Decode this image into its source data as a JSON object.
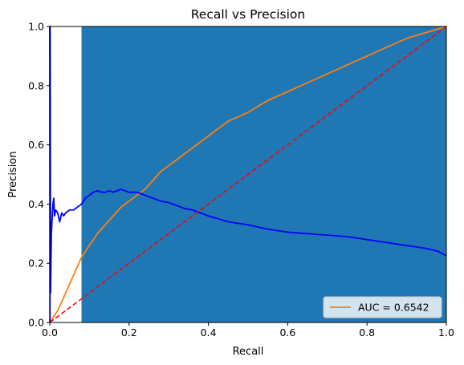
{
  "chart_data": {
    "type": "line",
    "title": "Recall vs Precision",
    "xlabel": "Recall",
    "ylabel": "Precision",
    "xlim": [
      0,
      1
    ],
    "ylim": [
      0,
      1
    ],
    "xticks": [
      "0.0",
      "0.2",
      "0.4",
      "0.6",
      "0.8",
      "1.0"
    ],
    "yticks": [
      "0.0",
      "0.2",
      "0.4",
      "0.6",
      "0.8",
      "1.0"
    ],
    "grid": false,
    "legend_position": "lower-right",
    "shaded_region": {
      "x": [
        0.08,
        1.0
      ],
      "y": [
        0,
        1
      ],
      "color": "#1f77b4"
    },
    "series": [
      {
        "name": "AUC = 0.6542",
        "color": "#ff7f0e",
        "x": [
          0,
          0.02,
          0.04,
          0.06,
          0.08,
          0.1,
          0.12,
          0.14,
          0.16,
          0.18,
          0.2,
          0.22,
          0.24,
          0.26,
          0.28,
          0.3,
          0.35,
          0.4,
          0.45,
          0.5,
          0.55,
          0.6,
          0.65,
          0.7,
          0.75,
          0.8,
          0.85,
          0.9,
          0.95,
          1.0
        ],
        "y": [
          0,
          0.04,
          0.1,
          0.16,
          0.22,
          0.26,
          0.3,
          0.33,
          0.36,
          0.39,
          0.41,
          0.43,
          0.45,
          0.48,
          0.51,
          0.53,
          0.58,
          0.63,
          0.68,
          0.71,
          0.75,
          0.78,
          0.81,
          0.84,
          0.87,
          0.9,
          0.93,
          0.96,
          0.98,
          1.0
        ]
      },
      {
        "name": "",
        "color": "#0000ff",
        "x": [
          0,
          0.0005,
          0.001,
          0.002,
          0.003,
          0.004,
          0.006,
          0.008,
          0.01,
          0.012,
          0.015,
          0.02,
          0.025,
          0.03,
          0.035,
          0.04,
          0.05,
          0.06,
          0.07,
          0.08,
          0.09,
          0.1,
          0.11,
          0.12,
          0.13,
          0.14,
          0.15,
          0.16,
          0.17,
          0.18,
          0.19,
          0.2,
          0.22,
          0.24,
          0.26,
          0.28,
          0.3,
          0.32,
          0.34,
          0.36,
          0.38,
          0.4,
          0.45,
          0.5,
          0.55,
          0.6,
          0.65,
          0.7,
          0.75,
          0.8,
          0.85,
          0.9,
          0.95,
          0.98,
          1.0
        ],
        "y": [
          1.0,
          0.0,
          1.0,
          0.1,
          0.2,
          0.3,
          0.35,
          0.4,
          0.42,
          0.36,
          0.38,
          0.37,
          0.34,
          0.37,
          0.36,
          0.37,
          0.38,
          0.38,
          0.39,
          0.4,
          0.42,
          0.43,
          0.44,
          0.445,
          0.44,
          0.44,
          0.445,
          0.44,
          0.445,
          0.45,
          0.445,
          0.44,
          0.44,
          0.43,
          0.42,
          0.41,
          0.405,
          0.395,
          0.385,
          0.38,
          0.37,
          0.36,
          0.34,
          0.33,
          0.315,
          0.305,
          0.3,
          0.295,
          0.29,
          0.28,
          0.27,
          0.26,
          0.25,
          0.24,
          0.225
        ]
      },
      {
        "name": "",
        "color": "#ff0000",
        "style": "dashed",
        "x": [
          0,
          1
        ],
        "y": [
          0,
          1
        ]
      }
    ]
  }
}
